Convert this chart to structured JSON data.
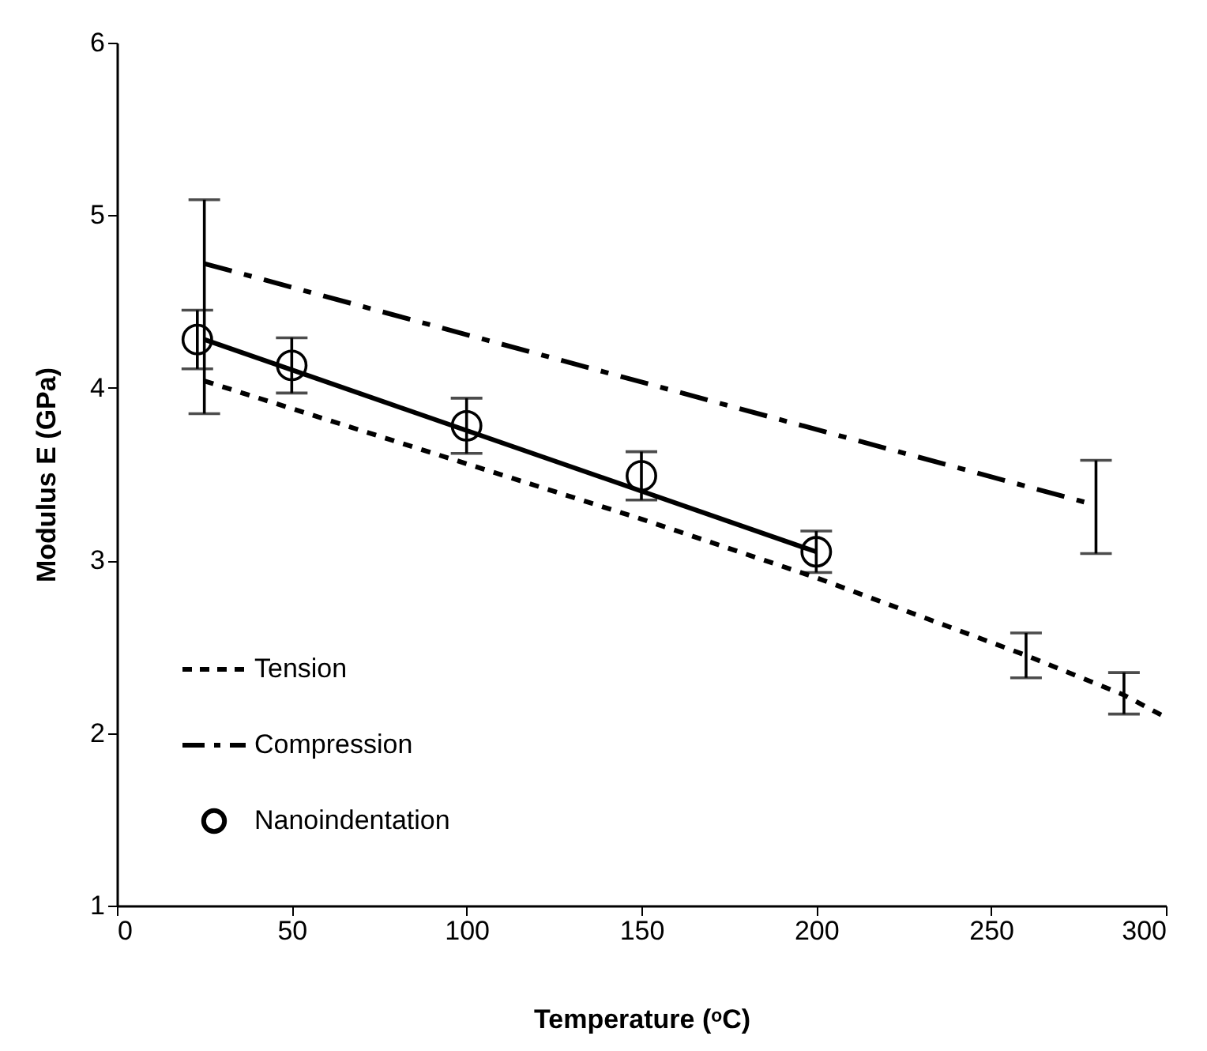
{
  "chart_data": {
    "type": "line",
    "xlabel": "Temperature (ᵒC)",
    "ylabel": "Modulus E (GPa)",
    "xlim": [
      0,
      300
    ],
    "xticks": [
      0,
      50,
      100,
      150,
      200,
      250,
      300
    ],
    "ylim": [
      1,
      6
    ],
    "yticks": [
      1,
      2,
      3,
      4,
      5,
      6
    ],
    "grid": false,
    "legend": "bottom left",
    "series": [
      {
        "name": "Tension",
        "color": "#000000",
        "line_style": "dotted",
        "x": [
          25,
          100,
          150,
          200,
          260,
          288,
          300
        ],
        "values": [
          4.04,
          3.56,
          3.24,
          2.9,
          2.45,
          2.22,
          2.09
        ],
        "errors": [
          null,
          null,
          null,
          null,
          [
            2.32,
            2.58
          ],
          [
            2.11,
            2.35
          ],
          null
        ]
      },
      {
        "name": "Compression",
        "color": "#000000",
        "line_style": "dashed",
        "x": [
          25,
          280
        ],
        "values": [
          4.72,
          3.32
        ],
        "errors": [
          [
            3.85,
            5.09
          ],
          [
            3.04,
            3.58
          ]
        ]
      },
      {
        "name": "Nanoindentation",
        "type": "scatter",
        "color": "#000000",
        "marker": "circle",
        "x": [
          23,
          50,
          100,
          150,
          200
        ],
        "values": [
          4.28,
          4.13,
          3.78,
          3.49,
          3.05
        ],
        "errors": [
          0.17,
          0.16,
          0.16,
          0.14,
          0.12
        ]
      },
      {
        "color": "#000000",
        "line_style": "solid",
        "x": [
          25,
          200
        ],
        "values": [
          4.28,
          3.05
        ]
      }
    ]
  }
}
